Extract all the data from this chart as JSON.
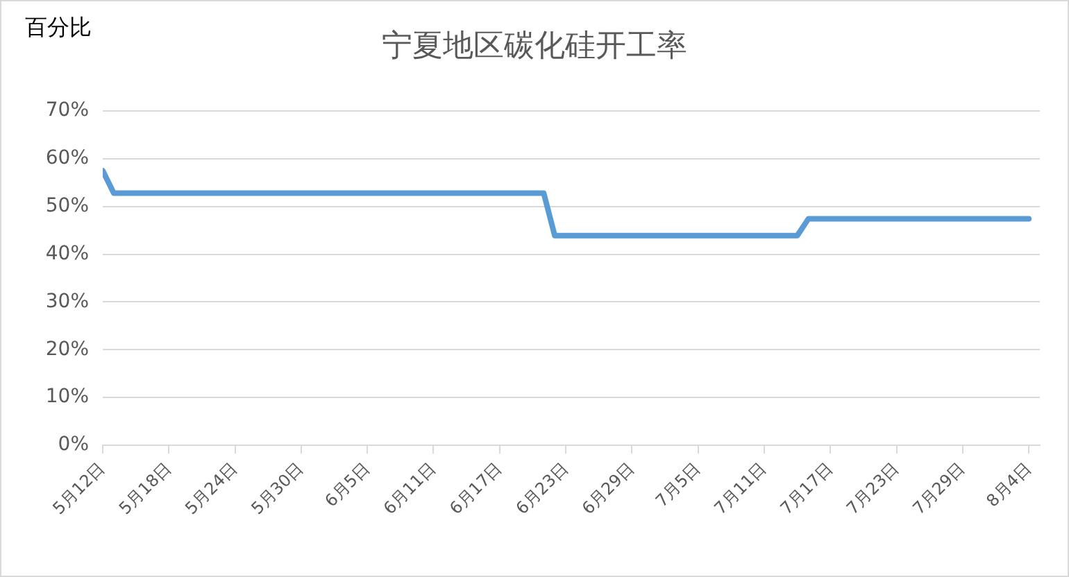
{
  "chart_data": {
    "type": "line",
    "title": "宁夏地区碳化硅开工率",
    "ylabel": "百分比",
    "x": [
      "--05-12",
      "--05-13",
      "--06-21",
      "--06-22",
      "--07-14",
      "--07-15",
      "--08-04"
    ],
    "series": [
      {
        "color": "#5b9bd5",
        "values": [
          57.5,
          52.8,
          52.8,
          43.9,
          43.9,
          47.4,
          47.4
        ]
      }
    ],
    "xlim": [
      "--05-12",
      "--08-05"
    ],
    "xticks": [
      {
        "value": "--05-12",
        "label": "5月12日"
      },
      {
        "value": "--05-18",
        "label": "5月18日"
      },
      {
        "value": "--05-24",
        "label": "5月24日"
      },
      {
        "value": "--05-30",
        "label": "5月30日"
      },
      {
        "value": "--06-05",
        "label": "6月5日"
      },
      {
        "value": "--06-11",
        "label": "6月11日"
      },
      {
        "value": "--06-17",
        "label": "6月17日"
      },
      {
        "value": "--06-23",
        "label": "6月23日"
      },
      {
        "value": "--06-29",
        "label": "6月29日"
      },
      {
        "value": "--07-05",
        "label": "7月5日"
      },
      {
        "value": "--07-11",
        "label": "7月11日"
      },
      {
        "value": "--07-17",
        "label": "7月17日"
      },
      {
        "value": "--07-23",
        "label": "7月23日"
      },
      {
        "value": "--07-29",
        "label": "7月29日"
      },
      {
        "value": "--08-04",
        "label": "8月4日"
      }
    ],
    "ylim": [
      0,
      70
    ],
    "yticks": [
      {
        "value": 0,
        "label": "0%"
      },
      {
        "value": 10,
        "label": "10%"
      },
      {
        "value": 20,
        "label": "20%"
      },
      {
        "value": 30,
        "label": "30%"
      },
      {
        "value": 40,
        "label": "40%"
      },
      {
        "value": 50,
        "label": "50%"
      },
      {
        "value": 60,
        "label": "60%"
      },
      {
        "value": 70,
        "label": "70%"
      }
    ],
    "grid": "y",
    "legend": false,
    "marker": "none",
    "line_style": "solid"
  }
}
